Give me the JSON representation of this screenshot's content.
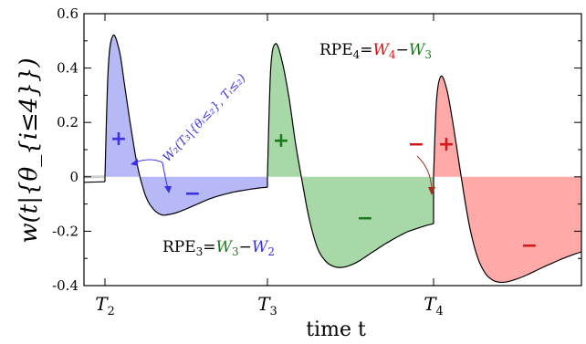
{
  "chart_data": {
    "type": "line",
    "title": "",
    "xlabel": "time t",
    "ylabel": "w(t|{θ_{i≤4}})",
    "ylim": [
      -0.4,
      0.6
    ],
    "yticks": [
      "-0.4",
      "-0.2",
      "0",
      "0.2",
      "0.4",
      "0.6"
    ],
    "yticks_values": [
      -0.4,
      -0.2,
      0,
      0.2,
      0.4,
      0.6
    ],
    "xticks": [
      "T2",
      "T3",
      "T4"
    ],
    "grid": false,
    "colors": {
      "W2": "#3a32e0",
      "W3": "#1a7a1a",
      "W4": "#d01818",
      "fill_blue": "#b7b9f7",
      "fill_green": "#a8d8a8",
      "fill_red": "#ffa9a9",
      "baseline_gray": "#d0d0d0"
    },
    "segments": [
      {
        "name": "W2",
        "fill": "blue",
        "x": [
          0.0,
          0.02,
          0.05,
          0.09,
          0.12,
          0.16,
          0.2,
          0.25,
          0.3,
          0.35,
          0.4,
          0.45,
          0.5,
          0.55,
          0.6,
          0.65,
          0.7,
          0.75,
          0.8,
          0.85,
          0.9,
          0.95,
          1.0
        ],
        "y": [
          0.0,
          0.4,
          0.52,
          0.46,
          0.34,
          0.18,
          0.04,
          -0.07,
          -0.12,
          -0.14,
          -0.138,
          -0.13,
          -0.118,
          -0.105,
          -0.092,
          -0.08,
          -0.07,
          -0.062,
          -0.055,
          -0.05,
          -0.045,
          -0.041,
          -0.038
        ]
      },
      {
        "name": "W3",
        "fill": "green",
        "x": [
          0.0,
          0.02,
          0.05,
          0.09,
          0.13,
          0.17,
          0.21,
          0.25,
          0.3,
          0.35,
          0.4,
          0.45,
          0.5,
          0.55,
          0.6,
          0.65,
          0.7,
          0.75,
          0.8,
          0.85,
          0.9,
          0.95,
          1.0
        ],
        "y": [
          0.0,
          0.4,
          0.49,
          0.42,
          0.29,
          0.12,
          -0.02,
          -0.15,
          -0.26,
          -0.31,
          -0.33,
          -0.333,
          -0.325,
          -0.31,
          -0.29,
          -0.27,
          -0.25,
          -0.232,
          -0.215,
          -0.2,
          -0.19,
          -0.18,
          -0.172
        ]
      },
      {
        "name": "W4",
        "fill": "red",
        "x": [
          0.0,
          0.02,
          0.05,
          0.09,
          0.13,
          0.17,
          0.21,
          0.25,
          0.3,
          0.35,
          0.4,
          0.45,
          0.5,
          0.55,
          0.6,
          0.65,
          0.7,
          0.75,
          0.8,
          0.85,
          0.9,
          0.95,
          1.0
        ],
        "y": [
          0.0,
          0.28,
          0.37,
          0.32,
          0.2,
          0.06,
          -0.08,
          -0.2,
          -0.3,
          -0.355,
          -0.38,
          -0.388,
          -0.386,
          -0.378,
          -0.368,
          -0.356,
          -0.343,
          -0.33,
          -0.318,
          -0.306,
          -0.295,
          -0.285,
          -0.276
        ]
      }
    ],
    "pre_segment": {
      "x": [
        0,
        1
      ],
      "y": [
        -0.02,
        -0.018
      ]
    },
    "annotations": {
      "rpe4": {
        "lhs": "RPE",
        "sub": "4",
        "eq": "=",
        "a": "W",
        "a_sub": "4",
        "minus": "−",
        "b": "W",
        "b_sub": "3"
      },
      "rpe3": {
        "lhs": "RPE",
        "sub": "3",
        "eq": "=",
        "a": "W",
        "a_sub": "3",
        "minus": "−",
        "b": "W",
        "b_sub": "2"
      },
      "w2_label": "W₂(T₃|{θᵢ≤₂}, Tᵢ≤₂)",
      "plus": "+",
      "minus": "−"
    }
  }
}
